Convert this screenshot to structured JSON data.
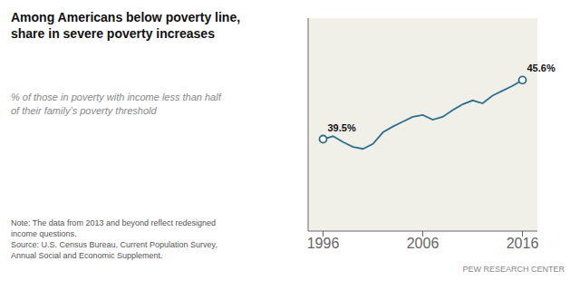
{
  "chart_data": {
    "type": "line",
    "title": "Among Americans below poverty line,\nshare in severe poverty increases",
    "subtitle": "% of those in poverty with income less than half\nof their family’s poverty threshold",
    "note": "Note: The data from 2013 and beyond reflect redesigned\nincome questions.\nSource: U.S. Census Bureau, Current Population Survey,\nAnnual Social and Economic Supplement.",
    "branding": "PEW RESEARCH CENTER",
    "x": [
      1996,
      1997,
      1998,
      1999,
      2000,
      2001,
      2002,
      2003,
      2004,
      2005,
      2006,
      2007,
      2008,
      2009,
      2010,
      2011,
      2012,
      2013,
      2014,
      2015,
      2016
    ],
    "values": [
      39.5,
      39.8,
      39.2,
      38.7,
      38.5,
      39.0,
      40.2,
      40.8,
      41.3,
      41.8,
      42.0,
      41.5,
      41.8,
      42.5,
      43.1,
      43.5,
      43.2,
      44.0,
      44.5,
      45.0,
      45.6
    ],
    "color": "#2e6e8e",
    "xlim": [
      1994.5,
      2017.5
    ],
    "xticks": [
      1996,
      2006,
      2016
    ],
    "ylim": [
      30,
      52
    ],
    "tick_labels": "x",
    "grid": false,
    "annotations": [
      {
        "x": 1996,
        "y": 39.5,
        "text": "39.5%"
      },
      {
        "x": 2016,
        "y": 45.6,
        "text": "45.6%"
      }
    ]
  }
}
